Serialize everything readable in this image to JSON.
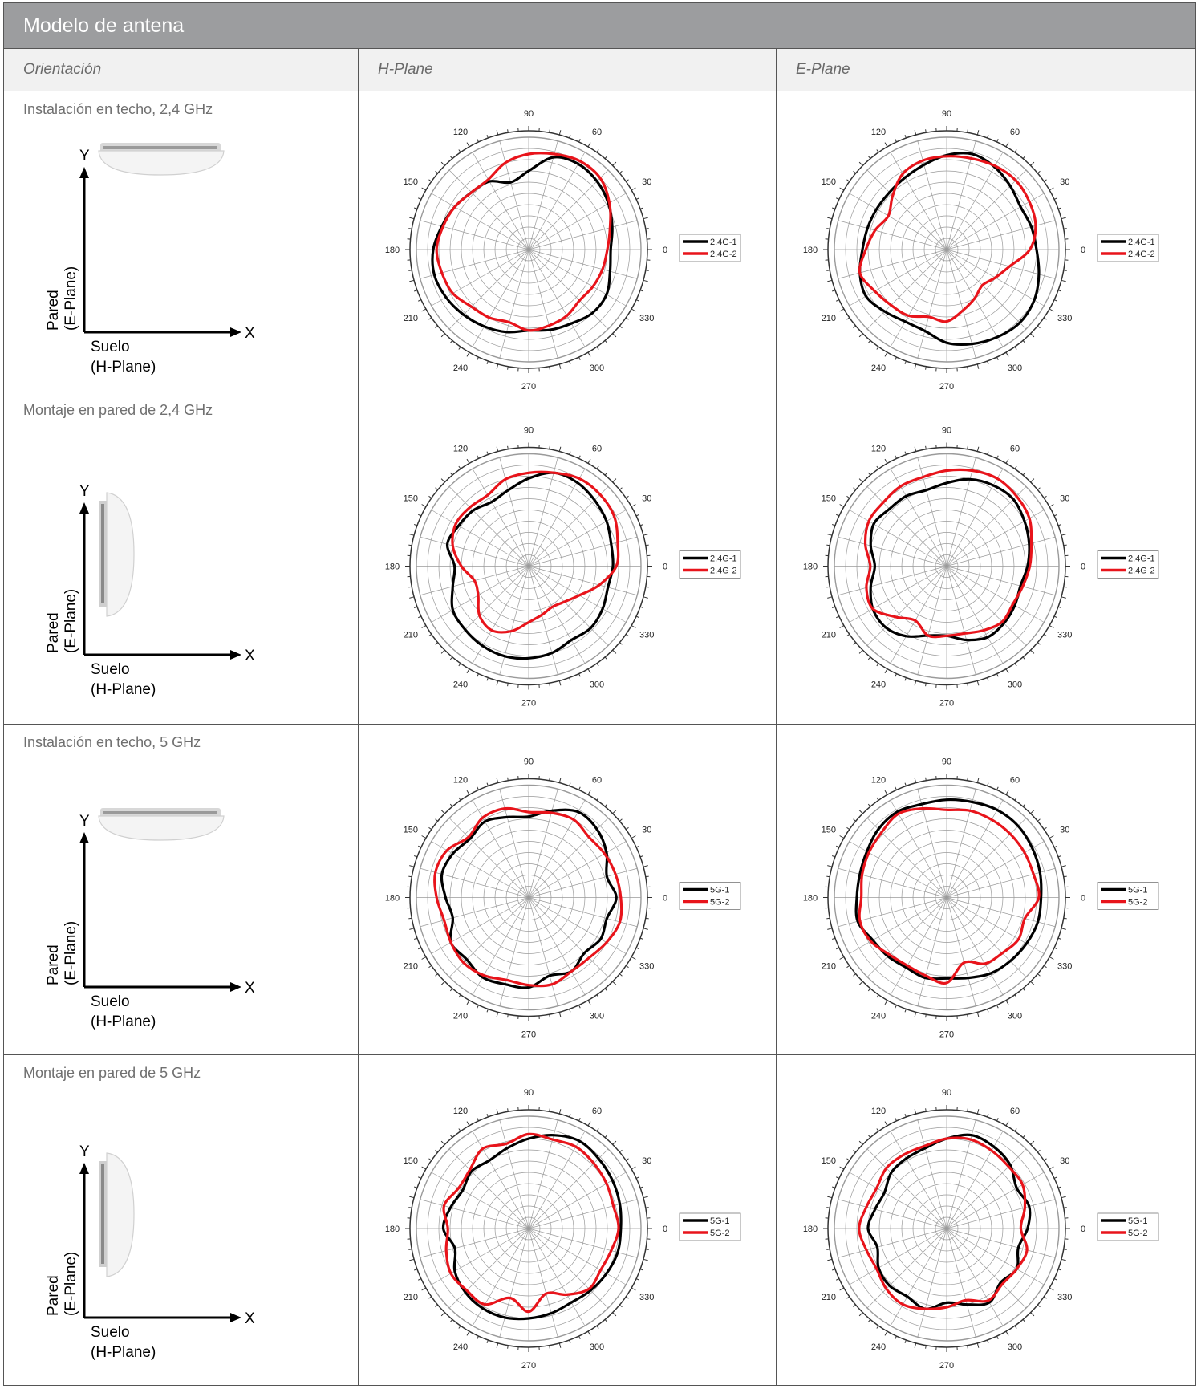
{
  "header": {
    "title": "Modelo de antena",
    "columns": [
      "Orientación",
      "H-Plane",
      "E-Plane"
    ]
  },
  "diagram_labels": {
    "y": "Y",
    "x": "X",
    "wall_line1": "Pared",
    "wall_line2": "(E-Plane)",
    "floor_line1": "Suelo",
    "floor_line2": "(H-Plane)"
  },
  "rows": [
    {
      "label": "Instalación en techo, 2,4 GHz",
      "mount": "ceiling"
    },
    {
      "label": "Montaje en pared de 2,4 GHz",
      "mount": "wall"
    },
    {
      "label": "Instalación en techo, 5 GHz",
      "mount": "ceiling"
    },
    {
      "label": "Montaje en pared de 5 GHz",
      "mount": "wall"
    }
  ],
  "colors": {
    "series1": "#000000",
    "series2": "#e8141b",
    "title_bg": "#9c9d9f",
    "header_bg": "#f1f1f1"
  },
  "chart_data": [
    {
      "type": "polar",
      "row": 1,
      "plane": "H-Plane",
      "angle_ticks": [
        0,
        30,
        60,
        90,
        120,
        150,
        180,
        210,
        240,
        270,
        300,
        330
      ],
      "grid": true,
      "legend": "right",
      "series": [
        {
          "name": "2.4G-1",
          "r": [
            0.73,
            0.77,
            0.82,
            0.86,
            0.88,
            0.85,
            0.7,
            0.62,
            0.7,
            0.72,
            0.76,
            0.8,
            0.85,
            0.87,
            0.85,
            0.82,
            0.79,
            0.76,
            0.72,
            0.74,
            0.76,
            0.8,
            0.8,
            0.75
          ]
        },
        {
          "name": "2.4G-2",
          "r": [
            0.7,
            0.75,
            0.83,
            0.9,
            0.91,
            0.88,
            0.85,
            0.8,
            0.72,
            0.72,
            0.76,
            0.79,
            0.82,
            0.8,
            0.78,
            0.72,
            0.7,
            0.67,
            0.72,
            0.7,
            0.68,
            0.64,
            0.66,
            0.68
          ]
        }
      ]
    },
    {
      "type": "polar",
      "row": 1,
      "plane": "E-Plane",
      "angle_ticks": [
        0,
        30,
        60,
        90,
        120,
        150,
        180,
        210,
        240,
        270,
        300,
        330
      ],
      "grid": true,
      "legend": "right",
      "series": [
        {
          "name": "2.4G-1",
          "r": [
            0.8,
            0.78,
            0.76,
            0.8,
            0.85,
            0.88,
            0.84,
            0.78,
            0.74,
            0.72,
            0.72,
            0.73,
            0.75,
            0.8,
            0.83,
            0.78,
            0.74,
            0.75,
            0.83,
            0.87,
            0.9,
            0.92,
            0.9,
            0.85
          ]
        },
        {
          "name": "2.4G-2",
          "r": [
            0.74,
            0.82,
            0.85,
            0.87,
            0.86,
            0.84,
            0.83,
            0.82,
            0.78,
            0.68,
            0.6,
            0.66,
            0.72,
            0.8,
            0.74,
            0.7,
            0.68,
            0.62,
            0.64,
            0.56,
            0.5,
            0.45,
            0.5,
            0.58
          ]
        }
      ]
    },
    {
      "type": "polar",
      "row": 2,
      "plane": "H-Plane",
      "angle_ticks": [
        0,
        30,
        60,
        90,
        120,
        150,
        180,
        210,
        240,
        270,
        300,
        330
      ],
      "grid": true,
      "legend": "right",
      "series": [
        {
          "name": "2.4G-1",
          "r": [
            0.75,
            0.76,
            0.8,
            0.83,
            0.86,
            0.86,
            0.78,
            0.7,
            0.66,
            0.7,
            0.72,
            0.75,
            0.66,
            0.7,
            0.78,
            0.8,
            0.82,
            0.83,
            0.82,
            0.8,
            0.76,
            0.78,
            0.76,
            0.73
          ]
        },
        {
          "name": "2.4G-2",
          "r": [
            0.78,
            0.82,
            0.88,
            0.9,
            0.9,
            0.86,
            0.83,
            0.8,
            0.73,
            0.74,
            0.75,
            0.7,
            0.6,
            0.5,
            0.52,
            0.62,
            0.66,
            0.6,
            0.5,
            0.45,
            0.42,
            0.45,
            0.52,
            0.65
          ]
        }
      ]
    },
    {
      "type": "polar",
      "row": 2,
      "plane": "E-Plane",
      "angle_ticks": [
        0,
        30,
        60,
        90,
        120,
        150,
        180,
        210,
        240,
        270,
        300,
        330
      ],
      "grid": true,
      "legend": "right",
      "series": [
        {
          "name": "2.4G-1",
          "r": [
            0.72,
            0.76,
            0.8,
            0.84,
            0.83,
            0.8,
            0.74,
            0.7,
            0.72,
            0.72,
            0.75,
            0.7,
            0.64,
            0.7,
            0.76,
            0.77,
            0.72,
            0.64,
            0.62,
            0.68,
            0.73,
            0.72,
            0.7,
            0.68
          ]
        },
        {
          "name": "2.4G-2",
          "r": [
            0.74,
            0.78,
            0.85,
            0.88,
            0.9,
            0.88,
            0.85,
            0.82,
            0.82,
            0.8,
            0.8,
            0.75,
            0.68,
            0.74,
            0.76,
            0.64,
            0.56,
            0.64,
            0.62,
            0.62,
            0.66,
            0.7,
            0.68,
            0.7
          ]
        }
      ]
    },
    {
      "type": "polar",
      "row": 3,
      "plane": "H-Plane",
      "angle_ticks": [
        0,
        30,
        60,
        90,
        120,
        150,
        180,
        210,
        240,
        270,
        300,
        330
      ],
      "grid": true,
      "legend": "right",
      "series": [
        {
          "name": "5G-1",
          "r": [
            0.78,
            0.72,
            0.8,
            0.86,
            0.88,
            0.8,
            0.72,
            0.74,
            0.78,
            0.74,
            0.78,
            0.8,
            0.74,
            0.7,
            0.8,
            0.78,
            0.82,
            0.8,
            0.8,
            0.72,
            0.76,
            0.7,
            0.74,
            0.72
          ]
        },
        {
          "name": "5G-2",
          "r": [
            0.82,
            0.8,
            0.78,
            0.76,
            0.8,
            0.78,
            0.76,
            0.82,
            0.82,
            0.76,
            0.84,
            0.86,
            0.82,
            0.78,
            0.8,
            0.82,
            0.8,
            0.76,
            0.78,
            0.8,
            0.76,
            0.76,
            0.8,
            0.84
          ]
        }
      ]
    },
    {
      "type": "polar",
      "row": 3,
      "plane": "E-Plane",
      "angle_ticks": [
        0,
        30,
        60,
        90,
        120,
        150,
        180,
        210,
        240,
        270,
        300,
        330
      ],
      "grid": true,
      "legend": "right",
      "series": [
        {
          "name": "5G-1",
          "r": [
            0.84,
            0.86,
            0.88,
            0.9,
            0.9,
            0.88,
            0.87,
            0.86,
            0.88,
            0.86,
            0.82,
            0.8,
            0.8,
            0.82,
            0.76,
            0.74,
            0.72,
            0.74,
            0.72,
            0.74,
            0.78,
            0.8,
            0.82,
            0.84
          ]
        },
        {
          "name": "5G-2",
          "r": [
            0.82,
            0.8,
            0.8,
            0.8,
            0.8,
            0.8,
            0.78,
            0.82,
            0.86,
            0.82,
            0.8,
            0.78,
            0.76,
            0.8,
            0.78,
            0.72,
            0.7,
            0.72,
            0.76,
            0.6,
            0.68,
            0.7,
            0.74,
            0.72
          ]
        }
      ]
    },
    {
      "type": "polar",
      "row": 4,
      "plane": "H-Plane",
      "angle_ticks": [
        0,
        30,
        60,
        90,
        120,
        150,
        180,
        210,
        240,
        270,
        300,
        330
      ],
      "grid": true,
      "legend": "right",
      "series": [
        {
          "name": "5G-1",
          "r": [
            0.82,
            0.84,
            0.86,
            0.88,
            0.9,
            0.86,
            0.8,
            0.74,
            0.7,
            0.72,
            0.68,
            0.72,
            0.76,
            0.68,
            0.76,
            0.8,
            0.82,
            0.82,
            0.8,
            0.78,
            0.76,
            0.78,
            0.8,
            0.82
          ]
        },
        {
          "name": "5G-2",
          "r": [
            0.8,
            0.78,
            0.8,
            0.82,
            0.84,
            0.82,
            0.84,
            0.78,
            0.82,
            0.74,
            0.72,
            0.78,
            0.72,
            0.76,
            0.8,
            0.78,
            0.78,
            0.64,
            0.74,
            0.6,
            0.68,
            0.76,
            0.74,
            0.76
          ]
        }
      ]
    },
    {
      "type": "polar",
      "row": 4,
      "plane": "E-Plane",
      "angle_ticks": [
        0,
        30,
        60,
        90,
        120,
        150,
        180,
        210,
        240,
        270,
        300,
        330
      ],
      "grid": true,
      "legend": "right",
      "series": [
        {
          "name": "5G-1",
          "r": [
            0.72,
            0.76,
            0.72,
            0.8,
            0.84,
            0.86,
            0.8,
            0.74,
            0.72,
            0.7,
            0.64,
            0.66,
            0.7,
            0.64,
            0.7,
            0.72,
            0.7,
            0.74,
            0.66,
            0.7,
            0.76,
            0.68,
            0.72,
            0.66
          ]
        },
        {
          "name": "5G-2",
          "r": [
            0.66,
            0.72,
            0.78,
            0.78,
            0.8,
            0.82,
            0.8,
            0.76,
            0.76,
            0.76,
            0.72,
            0.74,
            0.78,
            0.74,
            0.72,
            0.76,
            0.78,
            0.74,
            0.7,
            0.66,
            0.74,
            0.7,
            0.72,
            0.74
          ]
        }
      ]
    }
  ]
}
